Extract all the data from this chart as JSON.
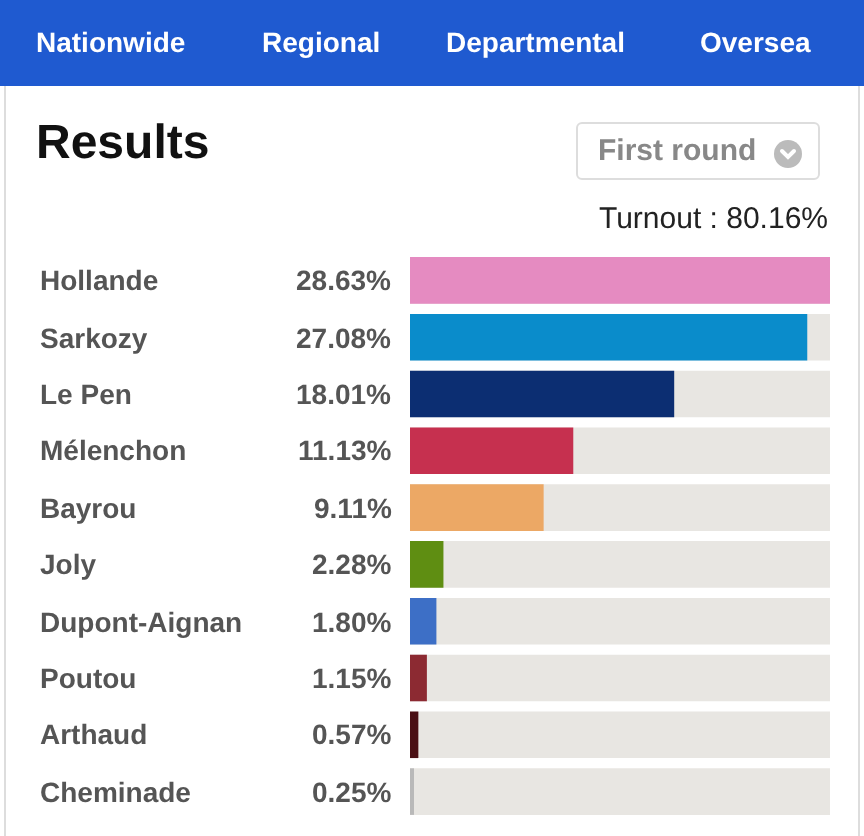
{
  "chart_data": {
    "type": "bar",
    "orientation": "horizontal",
    "title": "Results",
    "annotations": [
      "Nationwide",
      "Regional",
      "Departmental",
      "Oversea",
      "First round",
      "Turnout : 80.16%"
    ],
    "categories": [
      "Hollande",
      "Sarkozy",
      "Le Pen",
      "Mélenchon",
      "Bayrou",
      "Joly",
      "Dupont-Aignan",
      "Poutou",
      "Arthaud",
      "Cheminade"
    ],
    "values": [
      28.63,
      27.08,
      18.01,
      11.13,
      9.11,
      2.28,
      1.8,
      1.15,
      0.57,
      0.25
    ],
    "value_labels": [
      "28.63%",
      "27.08%",
      "18.01%",
      "11.13%",
      "9.11%",
      "2.28%",
      "1.80%",
      "1.15%",
      "0.57%",
      "0.25%"
    ],
    "colors": [
      "#e58bc1",
      "#0a8ccb",
      "#0c2e72",
      "#c6304f",
      "#eca865",
      "#5f8e12",
      "#3d6fc6",
      "#8c2a32",
      "#4a0f14",
      "#b9b9b9"
    ],
    "xlim": [
      0,
      28.63
    ],
    "grid": false,
    "legend": false
  }
}
